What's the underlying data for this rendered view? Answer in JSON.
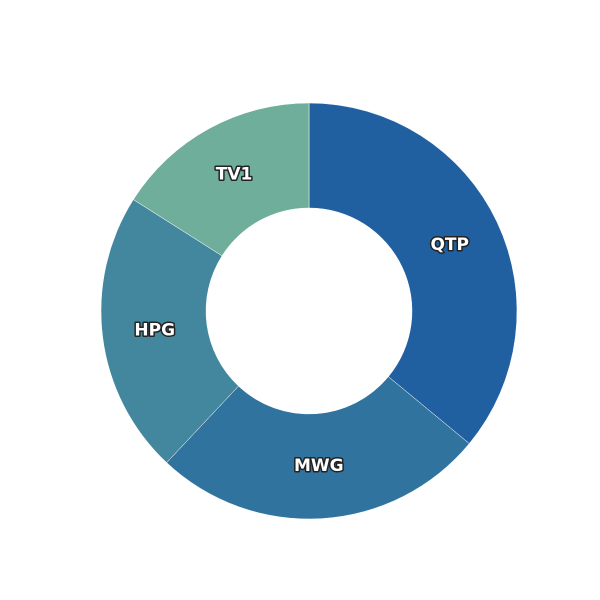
{
  "chart_data": {
    "type": "donut",
    "categories": [
      "QTP",
      "MWG",
      "HPG",
      "TV1"
    ],
    "values": [
      36,
      26,
      22,
      16
    ],
    "colors": [
      "#2060a0",
      "#30739e",
      "#42879d",
      "#6fae9a"
    ]
  }
}
